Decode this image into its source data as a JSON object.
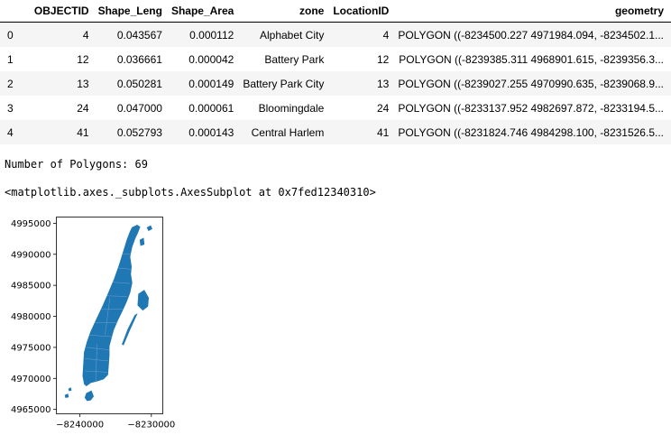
{
  "table": {
    "index_header": "",
    "columns": [
      "OBJECTID",
      "Shape_Leng",
      "Shape_Area",
      "zone",
      "LocationID",
      "geometry"
    ],
    "rows": [
      {
        "index": "0",
        "cells": [
          "4",
          "0.043567",
          "0.000112",
          "Alphabet City",
          "4",
          "POLYGON ((-8234500.227 4971984.094, -8234502.1..."
        ]
      },
      {
        "index": "1",
        "cells": [
          "12",
          "0.036661",
          "0.000042",
          "Battery Park",
          "12",
          "POLYGON ((-8239385.311 4968901.615, -8239356.3..."
        ]
      },
      {
        "index": "2",
        "cells": [
          "13",
          "0.050281",
          "0.000149",
          "Battery Park City",
          "13",
          "POLYGON ((-8239027.255 4970990.635, -8239068.9..."
        ]
      },
      {
        "index": "3",
        "cells": [
          "24",
          "0.047000",
          "0.000061",
          "Bloomingdale",
          "24",
          "POLYGON ((-8233137.952 4982697.872, -8233194.5..."
        ]
      },
      {
        "index": "4",
        "cells": [
          "41",
          "0.052793",
          "0.000143",
          "Central Harlem",
          "41",
          "POLYGON ((-8231824.746 4984298.100, -8231526.5..."
        ]
      }
    ]
  },
  "output": {
    "polygon_count_line": "Number of Polygons: 69",
    "repr_line": "<matplotlib.axes._subplots.AxesSubplot at 0x7fed12340310>"
  },
  "chart_data": {
    "type": "map",
    "fill_color": "#1f77b4",
    "xlim": [
      -8243300,
      -8228400
    ],
    "ylim": [
      4964300,
      4996000
    ],
    "x_ticks": [
      -8240000,
      -8230000
    ],
    "x_tick_labels": [
      "−8240000",
      "−8230000"
    ],
    "y_ticks": [
      4965000,
      4970000,
      4975000,
      4980000,
      4985000,
      4990000,
      4995000
    ],
    "y_tick_labels": [
      "4965000",
      "4970000",
      "4975000",
      "4980000",
      "4985000",
      "4990000",
      "4995000"
    ],
    "main_island": [
      [
        -8232700,
        4994300
      ],
      [
        -8232000,
        4994700
      ],
      [
        -8231600,
        4994400
      ],
      [
        -8231900,
        4993500
      ],
      [
        -8232300,
        4992500
      ],
      [
        -8232700,
        4991200
      ],
      [
        -8233000,
        4989600
      ],
      [
        -8232800,
        4988000
      ],
      [
        -8232900,
        4986800
      ],
      [
        -8232700,
        4985400
      ],
      [
        -8233000,
        4983800
      ],
      [
        -8233500,
        4982300
      ],
      [
        -8234100,
        4980800
      ],
      [
        -8234700,
        4979400
      ],
      [
        -8235300,
        4977800
      ],
      [
        -8235600,
        4976500
      ],
      [
        -8235900,
        4975200
      ],
      [
        -8235900,
        4973700
      ],
      [
        -8236000,
        4972000
      ],
      [
        -8236100,
        4970600
      ],
      [
        -8236700,
        4969900
      ],
      [
        -8237500,
        4969600
      ],
      [
        -8238500,
        4969300
      ],
      [
        -8239100,
        4968800
      ],
      [
        -8239400,
        4969100
      ],
      [
        -8239600,
        4970400
      ],
      [
        -8239500,
        4972300
      ],
      [
        -8239400,
        4974200
      ],
      [
        -8239000,
        4975900
      ],
      [
        -8238500,
        4977500
      ],
      [
        -8237700,
        4979500
      ],
      [
        -8236800,
        4981700
      ],
      [
        -8236000,
        4983800
      ],
      [
        -8235200,
        4986000
      ],
      [
        -8234500,
        4988300
      ],
      [
        -8233900,
        4990500
      ],
      [
        -8233400,
        4992400
      ],
      [
        -8233000,
        4993600
      ]
    ],
    "islands": [
      [
        [
          -8230600,
          4994300
        ],
        [
          -8230100,
          4994600
        ],
        [
          -8229900,
          4994100
        ],
        [
          -8230400,
          4993800
        ]
      ],
      [
        [
          -8231600,
          4992300
        ],
        [
          -8231100,
          4992600
        ],
        [
          -8231000,
          4991600
        ],
        [
          -8231500,
          4991400
        ]
      ],
      [
        [
          -8231800,
          4983600
        ],
        [
          -8231000,
          4984200
        ],
        [
          -8230400,
          4983000
        ],
        [
          -8230500,
          4981600
        ],
        [
          -8231200,
          4981000
        ],
        [
          -8231900,
          4981800
        ]
      ],
      [
        [
          -8232300,
          4980200
        ],
        [
          -8232000,
          4980400
        ],
        [
          -8233100,
          4977600
        ],
        [
          -8233900,
          4975400
        ],
        [
          -8234100,
          4975500
        ],
        [
          -8233300,
          4977900
        ]
      ],
      [
        [
          -8239100,
          4967600
        ],
        [
          -8238400,
          4968000
        ],
        [
          -8238100,
          4967100
        ],
        [
          -8238500,
          4966500
        ],
        [
          -8239000,
          4966400
        ],
        [
          -8239300,
          4966900
        ]
      ],
      [
        [
          -8242100,
          4967300
        ],
        [
          -8241700,
          4967500
        ],
        [
          -8241600,
          4967000
        ],
        [
          -8242000,
          4966900
        ]
      ],
      [
        [
          -8241600,
          4968300
        ],
        [
          -8241300,
          4968500
        ],
        [
          -8241200,
          4968100
        ],
        [
          -8241500,
          4968000
        ]
      ]
    ],
    "boundary_lines": [
      [
        [
          -8239300,
          4971200
        ],
        [
          -8236100,
          4971000
        ]
      ],
      [
        [
          -8239300,
          4973200
        ],
        [
          -8236000,
          4972800
        ]
      ],
      [
        [
          -8239100,
          4975000
        ],
        [
          -8235900,
          4974600
        ]
      ],
      [
        [
          -8238600,
          4977000
        ],
        [
          -8235500,
          4976700
        ]
      ],
      [
        [
          -8237900,
          4979000
        ],
        [
          -8234700,
          4979000
        ]
      ],
      [
        [
          -8237000,
          4981200
        ],
        [
          -8234000,
          4981200
        ]
      ],
      [
        [
          -8236200,
          4983300
        ],
        [
          -8233400,
          4983200
        ]
      ],
      [
        [
          -8235400,
          4985500
        ],
        [
          -8233000,
          4985300
        ]
      ],
      [
        [
          -8234700,
          4987800
        ],
        [
          -8232900,
          4987600
        ]
      ],
      [
        [
          -8234000,
          4990100
        ],
        [
          -8232900,
          4990000
        ]
      ],
      [
        [
          -8237800,
          4969500
        ],
        [
          -8237600,
          4975500
        ]
      ],
      [
        [
          -8236500,
          4977000
        ],
        [
          -8235800,
          4983000
        ]
      ]
    ]
  }
}
